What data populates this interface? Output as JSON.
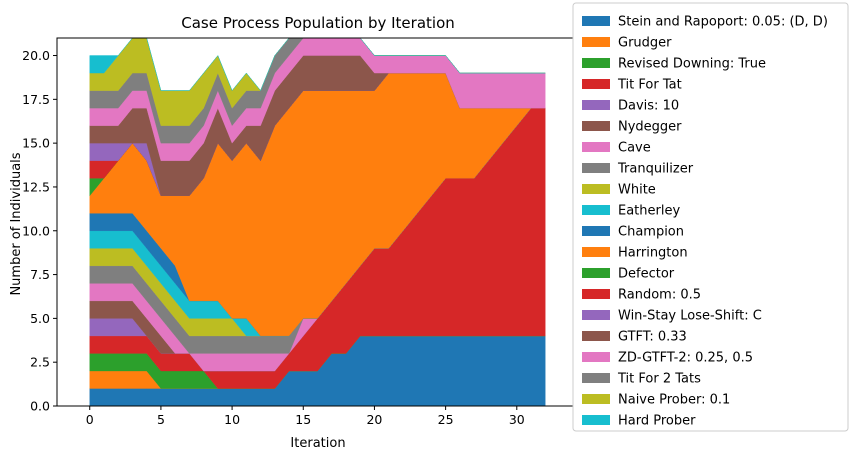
{
  "chart_data": {
    "type": "area",
    "stacked": true,
    "title": "Case Process Population by Iteration",
    "xlabel": "Iteration",
    "ylabel": "Number of Individuals",
    "xlim": [
      -2.3,
      34.3
    ],
    "ylim": [
      0,
      21.0
    ],
    "xticks": [
      0,
      5,
      10,
      15,
      20,
      25,
      30
    ],
    "yticks": [
      0.0,
      2.5,
      5.0,
      7.5,
      10.0,
      12.5,
      15.0,
      17.5,
      20.0
    ],
    "ytick_labels": [
      "0.0",
      "2.5",
      "5.0",
      "7.5",
      "10.0",
      "12.5",
      "15.0",
      "17.5",
      "20.0"
    ],
    "grid": false,
    "legend_position": "outside-right",
    "x": [
      0,
      1,
      2,
      3,
      4,
      5,
      6,
      7,
      8,
      9,
      10,
      11,
      12,
      13,
      14,
      15,
      16,
      17,
      18,
      19,
      20,
      21,
      22,
      23,
      24,
      25,
      26,
      27,
      28,
      29,
      30,
      31,
      32
    ],
    "series": [
      {
        "name": "Stein and Rapoport: 0.05: (D, D)",
        "color": "#1f77b4",
        "values": [
          1,
          1,
          1,
          1,
          1,
          1,
          1,
          1,
          1,
          1,
          1,
          1,
          1,
          1,
          2,
          2,
          2,
          3,
          3,
          4,
          4,
          4,
          4,
          4,
          4,
          4,
          4,
          4,
          4,
          4,
          4,
          4,
          4
        ]
      },
      {
        "name": "Grudger",
        "color": "#ff7f0e",
        "values": [
          1,
          1,
          1,
          1,
          1,
          0,
          0,
          0,
          0,
          0,
          0,
          0,
          0,
          0,
          0,
          0,
          0,
          0,
          0,
          0,
          0,
          0,
          0,
          0,
          0,
          0,
          0,
          0,
          0,
          0,
          0,
          0,
          0
        ]
      },
      {
        "name": "Revised Downing: True",
        "color": "#2ca02c",
        "values": [
          1,
          1,
          1,
          1,
          1,
          1,
          1,
          1,
          1,
          0,
          0,
          0,
          0,
          0,
          0,
          0,
          0,
          0,
          0,
          0,
          0,
          0,
          0,
          0,
          0,
          0,
          0,
          0,
          0,
          0,
          0,
          0,
          0
        ]
      },
      {
        "name": "Tit For Tat",
        "color": "#d62728",
        "values": [
          1,
          1,
          1,
          1,
          1,
          1,
          1,
          1,
          0,
          1,
          1,
          1,
          1,
          1,
          1,
          2,
          3,
          3,
          4,
          4,
          5,
          5,
          6,
          7,
          8,
          9,
          9,
          9,
          10,
          11,
          12,
          13,
          13
        ]
      },
      {
        "name": "Davis: 10",
        "color": "#9467bd",
        "values": [
          1,
          1,
          1,
          1,
          0,
          0,
          0,
          0,
          0,
          0,
          0,
          0,
          0,
          0,
          0,
          0,
          0,
          0,
          0,
          0,
          0,
          0,
          0,
          0,
          0,
          0,
          0,
          0,
          0,
          0,
          0,
          0,
          0
        ]
      },
      {
        "name": "Nydegger",
        "color": "#8c564b",
        "values": [
          1,
          1,
          1,
          1,
          1,
          1,
          0,
          0,
          0,
          0,
          0,
          0,
          0,
          0,
          0,
          0,
          0,
          0,
          0,
          0,
          0,
          0,
          0,
          0,
          0,
          0,
          0,
          0,
          0,
          0,
          0,
          0,
          0
        ]
      },
      {
        "name": "Cave",
        "color": "#e377c2",
        "values": [
          1,
          1,
          1,
          1,
          1,
          1,
          1,
          0,
          1,
          1,
          1,
          1,
          1,
          1,
          0,
          1,
          0,
          0,
          0,
          0,
          0,
          0,
          0,
          0,
          0,
          0,
          0,
          0,
          0,
          0,
          0,
          0,
          0
        ]
      },
      {
        "name": "Tranquilizer",
        "color": "#7f7f7f",
        "values": [
          1,
          1,
          1,
          1,
          1,
          1,
          1,
          1,
          1,
          1,
          1,
          1,
          1,
          1,
          1,
          0,
          0,
          0,
          0,
          0,
          0,
          0,
          0,
          0,
          0,
          0,
          0,
          0,
          0,
          0,
          0,
          0,
          0
        ]
      },
      {
        "name": "White",
        "color": "#bcbd22",
        "values": [
          1,
          1,
          1,
          1,
          1,
          1,
          1,
          1,
          1,
          1,
          1,
          0,
          0,
          0,
          0,
          0,
          0,
          0,
          0,
          0,
          0,
          0,
          0,
          0,
          0,
          0,
          0,
          0,
          0,
          0,
          0,
          0,
          0
        ]
      },
      {
        "name": "Eatherley",
        "color": "#17becf",
        "values": [
          1,
          1,
          1,
          1,
          1,
          1,
          1,
          1,
          1,
          1,
          0,
          1,
          0,
          0,
          0,
          0,
          0,
          0,
          0,
          0,
          0,
          0,
          0,
          0,
          0,
          0,
          0,
          0,
          0,
          0,
          0,
          0,
          0
        ]
      },
      {
        "name": "Champion",
        "color": "#1f77b4",
        "values": [
          1,
          1,
          1,
          1,
          1,
          1,
          1,
          0,
          0,
          0,
          0,
          0,
          0,
          0,
          0,
          0,
          0,
          0,
          0,
          0,
          0,
          0,
          0,
          0,
          0,
          0,
          0,
          0,
          0,
          0,
          0,
          0,
          0
        ]
      },
      {
        "name": "Harrington",
        "color": "#ff7f0e",
        "values": [
          1,
          2,
          3,
          4,
          4,
          3,
          4,
          6,
          7,
          9,
          9,
          10,
          10,
          12,
          13,
          13,
          13,
          12,
          11,
          10,
          9,
          10,
          9,
          8,
          7,
          6,
          4,
          4,
          3,
          2,
          1,
          0,
          0
        ]
      },
      {
        "name": "Defector",
        "color": "#2ca02c",
        "values": [
          1,
          0,
          0,
          0,
          0,
          0,
          0,
          0,
          0,
          0,
          0,
          0,
          0,
          0,
          0,
          0,
          0,
          0,
          0,
          0,
          0,
          0,
          0,
          0,
          0,
          0,
          0,
          0,
          0,
          0,
          0,
          0,
          0
        ]
      },
      {
        "name": "Random: 0.5",
        "color": "#d62728",
        "values": [
          1,
          1,
          0,
          0,
          0,
          0,
          0,
          0,
          0,
          0,
          0,
          0,
          0,
          0,
          0,
          0,
          0,
          0,
          0,
          0,
          0,
          0,
          0,
          0,
          0,
          0,
          0,
          0,
          0,
          0,
          0,
          0,
          0
        ]
      },
      {
        "name": "Win-Stay Lose-Shift: C",
        "color": "#9467bd",
        "values": [
          1,
          1,
          1,
          0,
          1,
          0,
          0,
          0,
          0,
          0,
          0,
          0,
          0,
          0,
          0,
          0,
          0,
          0,
          0,
          0,
          0,
          0,
          0,
          0,
          0,
          0,
          0,
          0,
          0,
          0,
          0,
          0,
          0
        ]
      },
      {
        "name": "GTFT: 0.33",
        "color": "#8c564b",
        "values": [
          1,
          1,
          1,
          2,
          2,
          2,
          2,
          2,
          2,
          2,
          1,
          1,
          2,
          2,
          2,
          2,
          2,
          2,
          2,
          2,
          1,
          0,
          0,
          0,
          0,
          0,
          0,
          0,
          0,
          0,
          0,
          0,
          0
        ]
      },
      {
        "name": "ZD-GTFT-2: 0.25, 0.5",
        "color": "#e377c2",
        "values": [
          1,
          1,
          1,
          1,
          1,
          1,
          1,
          1,
          1,
          1,
          1,
          1,
          1,
          1,
          1,
          1,
          1,
          1,
          1,
          1,
          1,
          1,
          1,
          1,
          1,
          1,
          2,
          2,
          2,
          2,
          2,
          2,
          2
        ]
      },
      {
        "name": "Tit For 2 Tats",
        "color": "#7f7f7f",
        "values": [
          1,
          1,
          1,
          1,
          1,
          1,
          1,
          1,
          1,
          1,
          1,
          1,
          1,
          1,
          1,
          0,
          0,
          0,
          0,
          0,
          0,
          0,
          0,
          0,
          0,
          0,
          0,
          0,
          0,
          0,
          0,
          0,
          0
        ]
      },
      {
        "name": "Naive Prober: 0.1",
        "color": "#bcbd22",
        "values": [
          1,
          1,
          2,
          2,
          2,
          2,
          2,
          2,
          2,
          1,
          1,
          1,
          0,
          0,
          0,
          0,
          0,
          0,
          0,
          0,
          0,
          0,
          0,
          0,
          0,
          0,
          0,
          0,
          0,
          0,
          0,
          0,
          0
        ]
      },
      {
        "name": "Hard Prober",
        "color": "#17becf",
        "values": [
          1,
          1,
          0,
          0,
          0,
          0,
          0,
          0,
          0,
          0,
          0,
          0,
          0,
          0,
          0,
          0,
          0,
          0,
          0,
          0,
          0,
          0,
          0,
          0,
          0,
          0,
          0,
          0,
          0,
          0,
          0,
          0,
          0
        ]
      }
    ]
  }
}
